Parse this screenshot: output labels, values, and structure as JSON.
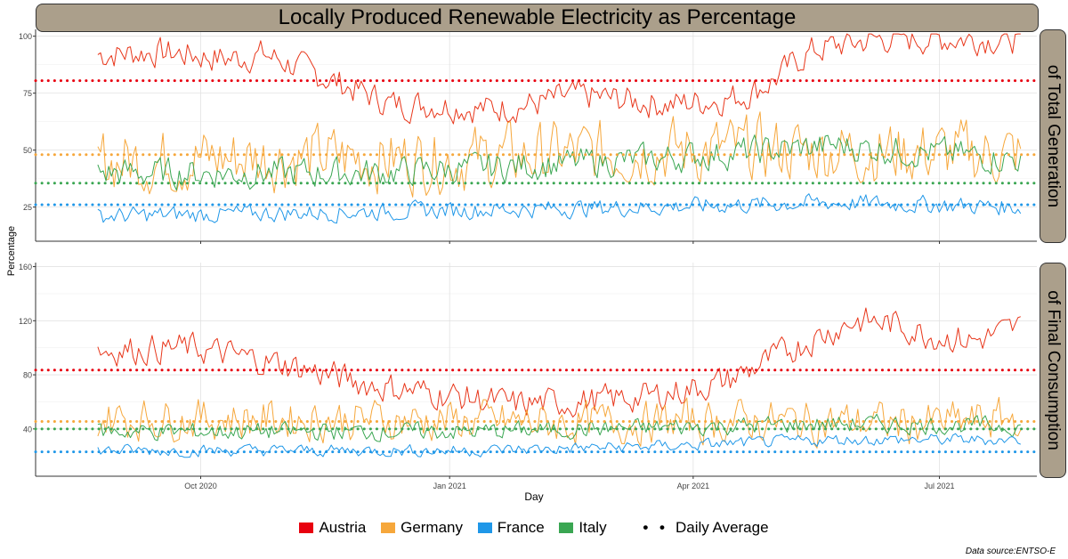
{
  "chart_data": {
    "type": "line",
    "title": "Locally Produced Renewable Electricity as Percentage",
    "xlabel": "Day",
    "ylabel": "Percentage",
    "x_ticks": [
      "Oct 2020",
      "Jan 2021",
      "Apr 2021",
      "Jul 2021"
    ],
    "x_range": [
      "2020-08-01",
      "2021-08-06"
    ],
    "legend": {
      "entries": [
        {
          "name": "Austria",
          "color": "#e8361a"
        },
        {
          "name": "Germany",
          "color": "#f6a73b"
        },
        {
          "name": "France",
          "color": "#1f97e8"
        },
        {
          "name": "Italy",
          "color": "#3aa652"
        }
      ],
      "average_label": "Daily Average",
      "position": "bottom"
    },
    "panels": [
      {
        "strip": "of Total Generation",
        "ylim": [
          10,
          103
        ],
        "yticks": [
          25,
          50,
          75,
          100
        ],
        "series": [
          {
            "name": "Austria",
            "anchors": [
              [
                0,
                92
              ],
              [
                0.06,
                93
              ],
              [
                0.1,
                92
              ],
              [
                0.14,
                90
              ],
              [
                0.18,
                92
              ],
              [
                0.22,
                86
              ],
              [
                0.27,
                78
              ],
              [
                0.32,
                70
              ],
              [
                0.37,
                70
              ],
              [
                0.42,
                68
              ],
              [
                0.47,
                70
              ],
              [
                0.52,
                74
              ],
              [
                0.57,
                72
              ],
              [
                0.62,
                70
              ],
              [
                0.67,
                72
              ],
              [
                0.7,
                74
              ],
              [
                0.73,
                80
              ],
              [
                0.77,
                93
              ],
              [
                0.8,
                96
              ],
              [
                0.85,
                99
              ],
              [
                0.9,
                99
              ],
              [
                1,
                99
              ]
            ],
            "amp": 6,
            "avg": 80.5
          },
          {
            "name": "Germany",
            "anchors": [
              [
                0,
                45
              ],
              [
                0.2,
                47
              ],
              [
                0.4,
                46
              ],
              [
                0.6,
                50
              ],
              [
                0.8,
                50
              ],
              [
                1,
                48
              ]
            ],
            "amp": 13,
            "avg": 48
          },
          {
            "name": "Italy",
            "anchors": [
              [
                0,
                40
              ],
              [
                0.3,
                40
              ],
              [
                0.6,
                46
              ],
              [
                0.8,
                52
              ],
              [
                1,
                46
              ]
            ],
            "amp": 6,
            "avg": 35.5
          },
          {
            "name": "France",
            "anchors": [
              [
                0,
                21
              ],
              [
                0.3,
                23
              ],
              [
                0.6,
                25
              ],
              [
                0.8,
                27
              ],
              [
                1,
                25
              ]
            ],
            "amp": 3.5,
            "avg": 26
          }
        ]
      },
      {
        "strip": "of Final Consumption",
        "ylim": [
          5,
          163
        ],
        "yticks": [
          40,
          80,
          120,
          160
        ],
        "series": [
          {
            "name": "Austria",
            "anchors": [
              [
                0,
                98
              ],
              [
                0.1,
                100
              ],
              [
                0.2,
                88
              ],
              [
                0.3,
                72
              ],
              [
                0.38,
                65
              ],
              [
                0.45,
                58
              ],
              [
                0.52,
                60
              ],
              [
                0.6,
                64
              ],
              [
                0.68,
                75
              ],
              [
                0.72,
                88
              ],
              [
                0.77,
                105
              ],
              [
                0.82,
                120
              ],
              [
                0.86,
                118
              ],
              [
                0.9,
                110
              ],
              [
                0.95,
                105
              ],
              [
                1,
                115
              ]
            ],
            "amp": 10,
            "avg": 83.5
          },
          {
            "name": "Germany",
            "anchors": [
              [
                0,
                48
              ],
              [
                0.3,
                47
              ],
              [
                0.5,
                44
              ],
              [
                0.7,
                46
              ],
              [
                0.9,
                44
              ],
              [
                1,
                48
              ]
            ],
            "amp": 14,
            "avg": 45.5
          },
          {
            "name": "Italy",
            "anchors": [
              [
                0,
                38
              ],
              [
                0.4,
                38
              ],
              [
                0.6,
                41
              ],
              [
                0.8,
                44
              ],
              [
                1,
                42
              ]
            ],
            "amp": 6,
            "avg": 40
          },
          {
            "name": "France",
            "anchors": [
              [
                0,
                24
              ],
              [
                0.4,
                24
              ],
              [
                0.6,
                27
              ],
              [
                0.8,
                32
              ],
              [
                1,
                32
              ]
            ],
            "amp": 4,
            "avg": 23
          }
        ]
      }
    ]
  },
  "source": "Data source:ENTSO-E"
}
